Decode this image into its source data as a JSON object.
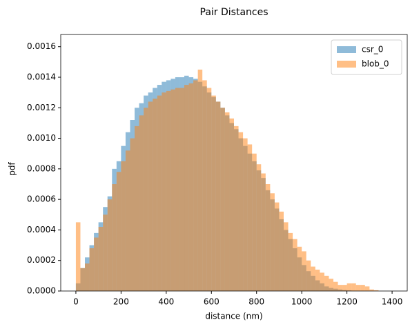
{
  "chart_data": {
    "type": "histogram",
    "title": "Pair Distances",
    "x_label": "distance (nm)",
    "y_label": "pdf",
    "bins": [
      0,
      20,
      40,
      60,
      80,
      100,
      120,
      140,
      160,
      180,
      200,
      220,
      240,
      260,
      280,
      300,
      320,
      340,
      360,
      380,
      400,
      420,
      440,
      460,
      480,
      500,
      520,
      540,
      560,
      580,
      600,
      620,
      640,
      660,
      680,
      700,
      720,
      740,
      760,
      780,
      800,
      820,
      840,
      860,
      880,
      900,
      920,
      940,
      960,
      980,
      1000,
      1020,
      1040,
      1060,
      1080,
      1100,
      1120,
      1140,
      1160,
      1180,
      1200,
      1220,
      1240,
      1260,
      1280,
      1300,
      1320,
      1340
    ],
    "series": [
      {
        "name": "csr_0",
        "color": "#1f77b4",
        "values": [
          5e-05,
          0.00015,
          0.00022,
          0.0003,
          0.00038,
          0.00045,
          0.00055,
          0.00062,
          0.0008,
          0.00085,
          0.00095,
          0.00104,
          0.00112,
          0.0012,
          0.00123,
          0.00128,
          0.0013,
          0.00133,
          0.00135,
          0.00137,
          0.00138,
          0.00139,
          0.0014,
          0.0014,
          0.00141,
          0.0014,
          0.00139,
          0.00137,
          0.00134,
          0.0013,
          0.00127,
          0.00124,
          0.0012,
          0.00115,
          0.0011,
          0.00106,
          0.001,
          0.00095,
          0.0009,
          0.00085,
          0.00079,
          0.00074,
          0.00066,
          0.0006,
          0.00054,
          0.00047,
          0.0004,
          0.00034,
          0.00028,
          0.00022,
          0.00017,
          0.00013,
          0.0001,
          7e-05,
          5e-05,
          3e-05,
          2e-05,
          1.5e-05,
          1e-05,
          6e-06,
          4e-06,
          2e-06,
          1e-06,
          0,
          0,
          0,
          0
        ]
      },
      {
        "name": "blob_0",
        "color": "#ff7f0e",
        "values": [
          0.00045,
          0.00015,
          0.00018,
          0.00028,
          0.00035,
          0.00042,
          0.0005,
          0.0006,
          0.0007,
          0.00078,
          0.00085,
          0.00092,
          0.001,
          0.00108,
          0.00115,
          0.0012,
          0.00124,
          0.00126,
          0.00128,
          0.0013,
          0.00131,
          0.00132,
          0.00133,
          0.00133,
          0.00135,
          0.00136,
          0.00138,
          0.00145,
          0.00138,
          0.00133,
          0.00128,
          0.00124,
          0.0012,
          0.00117,
          0.00113,
          0.00108,
          0.00104,
          0.001,
          0.00096,
          0.0009,
          0.00083,
          0.00077,
          0.0007,
          0.00064,
          0.00058,
          0.00052,
          0.00045,
          0.00038,
          0.00034,
          0.00029,
          0.00026,
          0.0002,
          0.00016,
          0.00014,
          0.00012,
          0.0001,
          8e-05,
          6e-05,
          4e-05,
          4e-05,
          5e-05,
          5e-05,
          4e-05,
          4e-05,
          3e-05,
          1e-05,
          5e-06
        ]
      }
    ],
    "xlim": [
      -67,
      1467
    ],
    "ylim": [
      0,
      0.00168
    ],
    "xticks": [
      0,
      200,
      400,
      600,
      800,
      1000,
      1200,
      1400
    ],
    "yticks": [
      {
        "value": 0,
        "label": "0.0000"
      },
      {
        "value": 0.0002,
        "label": "0.0002"
      },
      {
        "value": 0.0004,
        "label": "0.0004"
      },
      {
        "value": 0.0006,
        "label": "0.0006"
      },
      {
        "value": 0.0008,
        "label": "0.0008"
      },
      {
        "value": 0.001,
        "label": "0.0010"
      },
      {
        "value": 0.0012,
        "label": "0.0012"
      },
      {
        "value": 0.0014,
        "label": "0.0014"
      },
      {
        "value": 0.0016,
        "label": "0.0016"
      }
    ],
    "legend": "upper right"
  }
}
